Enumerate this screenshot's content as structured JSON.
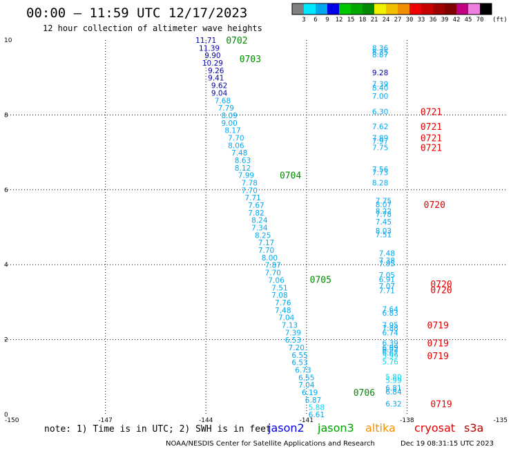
{
  "header": {
    "title": "00:00 – 11:59 UTC 12/17/2023",
    "subtitle": "12 hour collection of altimeter wave heights"
  },
  "colorbar": {
    "colors": [
      "#808080",
      "#00e8ff",
      "#00a8f0",
      "#0000e8",
      "#00c800",
      "#00a800",
      "#008800",
      "#f0f000",
      "#f0c000",
      "#f09000",
      "#f00000",
      "#c80000",
      "#a00000",
      "#800000",
      "#c00080",
      "#f080e0",
      "#000000"
    ],
    "labels": [
      "3",
      "6",
      "9",
      "12",
      "15",
      "18",
      "21",
      "24",
      "27",
      "30",
      "33",
      "36",
      "39",
      "42",
      "45",
      "70"
    ],
    "unit": "(ft)"
  },
  "chart_data": {
    "type": "scatter",
    "xlim": [
      -150,
      -135
    ],
    "ylim": [
      0,
      10
    ],
    "x_ticks": [
      "-150",
      "-147",
      "-144",
      "-141",
      "-138",
      "-135"
    ],
    "y_ticks": [
      "10",
      "8",
      "6",
      "4",
      "2",
      "0"
    ],
    "grid": true,
    "series": [
      {
        "name": "track1",
        "points": [
          {
            "x": -144.0,
            "y": 10.0,
            "v": "11.71",
            "c": "#0000b0"
          },
          {
            "x": -143.9,
            "y": 9.79,
            "v": "11.39",
            "c": "#0000b0"
          },
          {
            "x": -143.8,
            "y": 9.59,
            "v": "9.90",
            "c": "#0000b0"
          },
          {
            "x": -143.8,
            "y": 9.39,
            "v": "10.29",
            "c": "#0000b0"
          },
          {
            "x": -143.7,
            "y": 9.19,
            "v": "9.26",
            "c": "#0000b0"
          },
          {
            "x": -143.7,
            "y": 8.99,
            "v": "9.41",
            "c": "#0000b0"
          },
          {
            "x": -143.6,
            "y": 8.79,
            "v": "9.62",
            "c": "#0000b0"
          },
          {
            "x": -143.6,
            "y": 8.59,
            "v": "9.04",
            "c": "#0000b0"
          },
          {
            "x": -143.5,
            "y": 8.39,
            "v": "7.68",
            "c": "#00a8f0"
          },
          {
            "x": -143.4,
            "y": 8.19,
            "v": "7.79",
            "c": "#00a8f0"
          },
          {
            "x": -143.3,
            "y": 7.99,
            "v": "8.09",
            "c": "#00a8f0"
          },
          {
            "x": -143.3,
            "y": 7.79,
            "v": "9.00",
            "c": "#00a8f0"
          },
          {
            "x": -143.2,
            "y": 7.59,
            "v": "8.17",
            "c": "#00a8f0"
          },
          {
            "x": -143.1,
            "y": 7.39,
            "v": "7.70",
            "c": "#00a8f0"
          },
          {
            "x": -143.1,
            "y": 7.19,
            "v": "8.06",
            "c": "#00a8f0"
          },
          {
            "x": -143.0,
            "y": 6.99,
            "v": "7.48",
            "c": "#00a8f0"
          },
          {
            "x": -142.9,
            "y": 6.79,
            "v": "8.63",
            "c": "#00a8f0"
          },
          {
            "x": -142.9,
            "y": 6.59,
            "v": "8.12",
            "c": "#00a8f0"
          },
          {
            "x": -142.8,
            "y": 6.39,
            "v": "7.99",
            "c": "#00a8f0"
          },
          {
            "x": -142.7,
            "y": 6.19,
            "v": "7.78",
            "c": "#00a8f0"
          },
          {
            "x": -142.7,
            "y": 5.99,
            "v": "7.70",
            "c": "#00a8f0"
          },
          {
            "x": -142.6,
            "y": 5.79,
            "v": "7.71",
            "c": "#00a8f0"
          },
          {
            "x": -142.5,
            "y": 5.59,
            "v": "7.67",
            "c": "#00a8f0"
          },
          {
            "x": -142.5,
            "y": 5.39,
            "v": "7.82",
            "c": "#00a8f0"
          },
          {
            "x": -142.4,
            "y": 5.19,
            "v": "8.24",
            "c": "#00a8f0"
          },
          {
            "x": -142.4,
            "y": 4.99,
            "v": "7.34",
            "c": "#00a8f0"
          },
          {
            "x": -142.3,
            "y": 4.79,
            "v": "8.25",
            "c": "#00a8f0"
          },
          {
            "x": -142.2,
            "y": 4.59,
            "v": "7.17",
            "c": "#00a8f0"
          },
          {
            "x": -142.2,
            "y": 4.39,
            "v": "7.70",
            "c": "#00a8f0"
          },
          {
            "x": -142.1,
            "y": 4.19,
            "v": "8.00",
            "c": "#00a8f0"
          },
          {
            "x": -142.0,
            "y": 3.99,
            "v": "7.87",
            "c": "#00a8f0"
          },
          {
            "x": -142.0,
            "y": 3.79,
            "v": "7.70",
            "c": "#00a8f0"
          },
          {
            "x": -141.9,
            "y": 3.59,
            "v": "7.06",
            "c": "#00a8f0"
          },
          {
            "x": -141.8,
            "y": 3.39,
            "v": "7.51",
            "c": "#00a8f0"
          },
          {
            "x": -141.8,
            "y": 3.19,
            "v": "7.08",
            "c": "#00a8f0"
          },
          {
            "x": -141.7,
            "y": 2.99,
            "v": "7.76",
            "c": "#00a8f0"
          },
          {
            "x": -141.7,
            "y": 2.79,
            "v": "7.48",
            "c": "#00a8f0"
          },
          {
            "x": -141.6,
            "y": 2.59,
            "v": "7.04",
            "c": "#00a8f0"
          },
          {
            "x": -141.5,
            "y": 2.39,
            "v": "7.13",
            "c": "#00a8f0"
          },
          {
            "x": -141.4,
            "y": 2.19,
            "v": "7.39",
            "c": "#00a8f0"
          },
          {
            "x": -141.4,
            "y": 1.99,
            "v": "6.53",
            "c": "#00a8f0"
          },
          {
            "x": -141.3,
            "y": 1.79,
            "v": "7.20",
            "c": "#00a8f0"
          },
          {
            "x": -141.2,
            "y": 1.59,
            "v": "6.55",
            "c": "#00a8f0"
          },
          {
            "x": -141.2,
            "y": 1.39,
            "v": "6.53",
            "c": "#00a8f0"
          },
          {
            "x": -141.1,
            "y": 1.19,
            "v": "6.73",
            "c": "#00a8f0"
          },
          {
            "x": -141.0,
            "y": 0.99,
            "v": "6.55",
            "c": "#00a8f0"
          },
          {
            "x": -141.0,
            "y": 0.79,
            "v": "7.04",
            "c": "#00a8f0"
          },
          {
            "x": -140.9,
            "y": 0.59,
            "v": "6.19",
            "c": "#00a8f0"
          },
          {
            "x": -140.8,
            "y": 0.39,
            "v": "6.87",
            "c": "#00a8f0"
          },
          {
            "x": -140.7,
            "y": 0.19,
            "v": "5.88",
            "c": "#00d8f0"
          },
          {
            "x": -140.7,
            "y": 0.0,
            "v": "6.61",
            "c": "#00a8f0"
          }
        ]
      },
      {
        "name": "track2",
        "points": [
          {
            "x": -138.8,
            "y": 9.79,
            "v": "8.36",
            "c": "#00a8f0"
          },
          {
            "x": -138.8,
            "y": 9.69,
            "v": "8.35",
            "c": "#00a8f0"
          },
          {
            "x": -138.8,
            "y": 9.61,
            "v": "8.87",
            "c": "#00a8f0"
          },
          {
            "x": -138.8,
            "y": 9.13,
            "v": "9.28",
            "c": "#0000b0"
          },
          {
            "x": -138.8,
            "y": 8.83,
            "v": "7.39",
            "c": "#00a8f0"
          },
          {
            "x": -138.8,
            "y": 8.73,
            "v": "8.40",
            "c": "#00a8f0"
          },
          {
            "x": -138.8,
            "y": 8.51,
            "v": "7.00",
            "c": "#00a8f0"
          },
          {
            "x": -138.8,
            "y": 8.09,
            "v": "6.30",
            "c": "#00a8f0"
          },
          {
            "x": -138.8,
            "y": 7.69,
            "v": "7.62",
            "c": "#00a8f0"
          },
          {
            "x": -138.8,
            "y": 7.39,
            "v": "7.89",
            "c": "#00a8f0"
          },
          {
            "x": -138.8,
            "y": 7.31,
            "v": "7.97",
            "c": "#00a8f0"
          },
          {
            "x": -138.8,
            "y": 7.13,
            "v": "7.75",
            "c": "#00a8f0"
          },
          {
            "x": -138.8,
            "y": 6.55,
            "v": "7.56",
            "c": "#00a8f0"
          },
          {
            "x": -138.8,
            "y": 6.47,
            "v": "7.73",
            "c": "#00a8f0"
          },
          {
            "x": -138.8,
            "y": 6.19,
            "v": "8.28",
            "c": "#00a8f0"
          },
          {
            "x": -138.7,
            "y": 5.71,
            "v": "7.75",
            "c": "#00a8f0"
          },
          {
            "x": -138.7,
            "y": 5.61,
            "v": "8.07",
            "c": "#00a8f0"
          },
          {
            "x": -138.7,
            "y": 5.43,
            "v": "8.22",
            "c": "#00a8f0"
          },
          {
            "x": -138.7,
            "y": 5.35,
            "v": "7.78",
            "c": "#00a8f0"
          },
          {
            "x": -138.7,
            "y": 5.15,
            "v": "7.45",
            "c": "#00a8f0"
          },
          {
            "x": -138.7,
            "y": 4.91,
            "v": "8.03",
            "c": "#00a8f0"
          },
          {
            "x": -138.7,
            "y": 4.81,
            "v": "7.51",
            "c": "#00a8f0"
          },
          {
            "x": -138.6,
            "y": 4.31,
            "v": "7.48",
            "c": "#00a8f0"
          },
          {
            "x": -138.6,
            "y": 4.11,
            "v": "7.38",
            "c": "#00a8f0"
          },
          {
            "x": -138.6,
            "y": 4.03,
            "v": "7.95",
            "c": "#00a8f0"
          },
          {
            "x": -138.6,
            "y": 3.73,
            "v": "7.05",
            "c": "#00a8f0"
          },
          {
            "x": -138.6,
            "y": 3.61,
            "v": "6.91",
            "c": "#00a8f0"
          },
          {
            "x": -138.6,
            "y": 3.43,
            "v": "7.07",
            "c": "#00a8f0"
          },
          {
            "x": -138.6,
            "y": 3.31,
            "v": "7.71",
            "c": "#00a8f0"
          },
          {
            "x": -138.5,
            "y": 2.81,
            "v": "7.64",
            "c": "#00a8f0"
          },
          {
            "x": -138.5,
            "y": 2.71,
            "v": "6.83",
            "c": "#00a8f0"
          },
          {
            "x": -138.5,
            "y": 2.39,
            "v": "7.95",
            "c": "#00a8f0"
          },
          {
            "x": -138.5,
            "y": 2.31,
            "v": "7.88",
            "c": "#00a8f0"
          },
          {
            "x": -138.5,
            "y": 2.19,
            "v": "6.74",
            "c": "#00a8f0"
          },
          {
            "x": -138.5,
            "y": 1.91,
            "v": "6.39",
            "c": "#00a8f0"
          },
          {
            "x": -138.5,
            "y": 1.79,
            "v": "6.99",
            "c": "#00a8f0"
          },
          {
            "x": -138.5,
            "y": 1.73,
            "v": "6.92",
            "c": "#00a8f0"
          },
          {
            "x": -138.5,
            "y": 1.65,
            "v": "6.67",
            "c": "#00a8f0"
          },
          {
            "x": -138.5,
            "y": 1.57,
            "v": "5.99",
            "c": "#00d8f0"
          },
          {
            "x": -138.5,
            "y": 1.41,
            "v": "5.76",
            "c": "#00d8f0"
          },
          {
            "x": -138.4,
            "y": 1.01,
            "v": "5.80",
            "c": "#00d8f0"
          },
          {
            "x": -138.4,
            "y": 0.91,
            "v": "5.99",
            "c": "#00d8f0"
          },
          {
            "x": -138.4,
            "y": 0.71,
            "v": "6.81",
            "c": "#00a8f0"
          },
          {
            "x": -138.4,
            "y": 0.61,
            "v": "6.84",
            "c": "#00a8f0"
          },
          {
            "x": -138.4,
            "y": 0.29,
            "v": "6.32",
            "c": "#00a8f0"
          }
        ]
      }
    ],
    "time_labels": [
      {
        "x": -143.4,
        "y": 10.0,
        "t": "0702",
        "c": "#008800"
      },
      {
        "x": -143.0,
        "y": 9.5,
        "t": "0703",
        "c": "#008800"
      },
      {
        "x": -141.8,
        "y": 6.39,
        "t": "0704",
        "c": "#008800"
      },
      {
        "x": -140.9,
        "y": 3.61,
        "t": "0705",
        "c": "#008800"
      },
      {
        "x": -139.6,
        "y": 0.59,
        "t": "0706",
        "c": "#008800"
      },
      {
        "x": -137.6,
        "y": 8.09,
        "t": "0721",
        "c": "#e00000"
      },
      {
        "x": -137.6,
        "y": 7.69,
        "t": "0721",
        "c": "#e00000"
      },
      {
        "x": -137.6,
        "y": 7.39,
        "t": "0721",
        "c": "#e00000"
      },
      {
        "x": -137.6,
        "y": 7.13,
        "t": "0721",
        "c": "#e00000"
      },
      {
        "x": -137.5,
        "y": 5.61,
        "t": "0720",
        "c": "#e00000"
      },
      {
        "x": -137.3,
        "y": 3.49,
        "t": "0720",
        "c": "#e00000"
      },
      {
        "x": -137.3,
        "y": 3.33,
        "t": "0720",
        "c": "#e00000"
      },
      {
        "x": -137.4,
        "y": 2.39,
        "t": "0719",
        "c": "#e00000"
      },
      {
        "x": -137.4,
        "y": 1.91,
        "t": "0719",
        "c": "#e00000"
      },
      {
        "x": -137.4,
        "y": 1.57,
        "t": "0719",
        "c": "#e00000"
      },
      {
        "x": -137.3,
        "y": 0.29,
        "t": "0719",
        "c": "#e00000"
      }
    ]
  },
  "footer": {
    "note": "note: 1) Time is in UTC; 2) SWH is in feet",
    "satellites": [
      {
        "name": "jason2",
        "color": "#0000e0"
      },
      {
        "name": "jason3",
        "color": "#00a000"
      },
      {
        "name": "altika",
        "color": "#f09000"
      },
      {
        "name": "cryosat",
        "color": "#e00000"
      },
      {
        "name": "s3a",
        "color": "#b00000"
      }
    ],
    "credit": "NOAA/NESDIS Center for Satellite Applications and Research",
    "timestamp": "Dec 19 08:31:15 UTC 2023"
  }
}
